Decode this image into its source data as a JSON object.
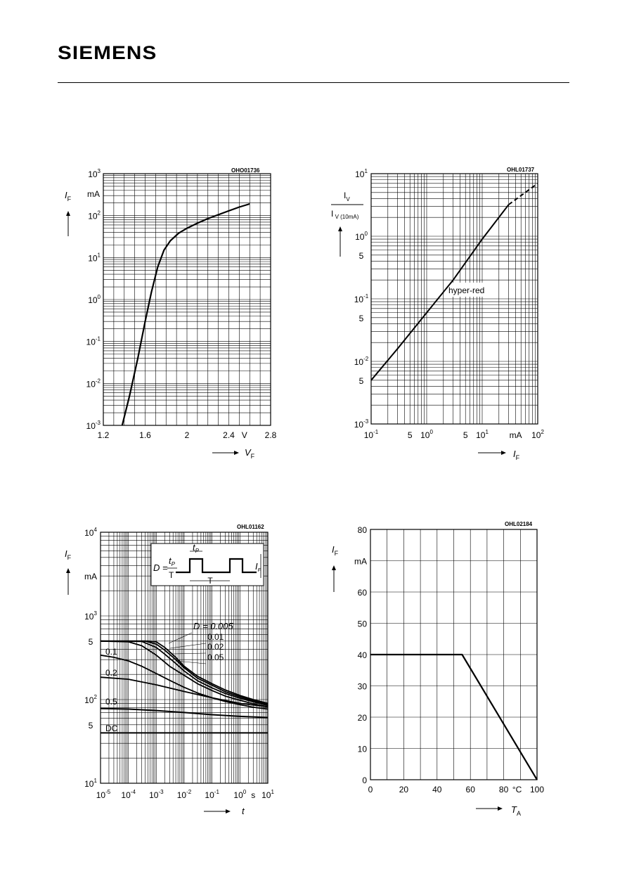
{
  "header": {
    "brand": "SIEMENS"
  },
  "chart_data": [
    {
      "type": "line",
      "code": "OHO01736",
      "xlabel": "V_F",
      "xunit": "V",
      "ylabel": "I_F",
      "yunit": "mA",
      "xlim": [
        1.2,
        2.8
      ],
      "ylim": [
        0.001,
        1000
      ],
      "yscale": "log",
      "xticks": [
        "1.2",
        "1.6",
        "2",
        "2.4",
        "V",
        "2.8"
      ],
      "yticks": [
        {
          "b": "10",
          "e": "3"
        },
        {
          "b": "10",
          "e": "2"
        },
        {
          "b": "10",
          "e": "1"
        },
        {
          "b": "10",
          "e": "0"
        },
        {
          "b": "10",
          "e": "-1"
        },
        {
          "b": "10",
          "e": "-2"
        },
        {
          "b": "10",
          "e": "-3"
        }
      ],
      "series": [
        {
          "x": [
            1.38,
            1.45,
            1.53,
            1.6,
            1.66,
            1.72,
            1.78,
            1.84,
            1.92,
            2.0,
            2.1,
            2.2,
            2.3,
            2.4,
            2.5,
            2.6
          ],
          "y": [
            0.001,
            0.005,
            0.04,
            0.3,
            1.5,
            6,
            15,
            25,
            38,
            50,
            66,
            85,
            105,
            130,
            160,
            190
          ]
        }
      ]
    },
    {
      "type": "line",
      "code": "OHL01737",
      "xlabel": "I_F",
      "xunit": "mA",
      "ylabel_num": "I_V",
      "ylabel_den": "I_V (10mA)",
      "xlim": [
        0.1,
        100
      ],
      "ylim": [
        0.001,
        10
      ],
      "xscale": "log",
      "yscale": "log",
      "xticks": [
        {
          "b": "10",
          "e": "-1"
        },
        {
          "b": "5",
          "e": ""
        },
        {
          "b": "10",
          "e": "0"
        },
        {
          "b": "5",
          "e": ""
        },
        {
          "b": "10",
          "e": "1"
        },
        {
          "b": "mA",
          "e": ""
        },
        {
          "b": "10",
          "e": "2"
        }
      ],
      "yticks": [
        {
          "b": "10",
          "e": "1"
        },
        {
          "b": "10",
          "e": "0"
        },
        {
          "b": "5",
          "e": ""
        },
        {
          "b": "10",
          "e": "-1"
        },
        {
          "b": "5",
          "e": ""
        },
        {
          "b": "10",
          "e": "-2"
        },
        {
          "b": "5",
          "e": ""
        },
        {
          "b": "10",
          "e": "-3"
        }
      ],
      "annotation": "hyper-red",
      "series": [
        {
          "name": "hyper-red",
          "x": [
            0.1,
            0.3,
            1,
            3,
            10,
            30
          ],
          "y": [
            0.005,
            0.016,
            0.06,
            0.2,
            0.9,
            3.2
          ]
        },
        {
          "style": "dashed",
          "x": [
            30,
            100
          ],
          "y": [
            3.2,
            7
          ]
        }
      ]
    },
    {
      "type": "line",
      "code": "OHL01162",
      "xlabel": "t",
      "xunit": "s",
      "ylabel": "I_F",
      "yunit": "mA",
      "xlim": [
        1e-05,
        10
      ],
      "ylim": [
        10,
        10000
      ],
      "xscale": "log",
      "yscale": "log",
      "xticks": [
        {
          "b": "10",
          "e": "-5"
        },
        {
          "b": "10",
          "e": "-4"
        },
        {
          "b": "10",
          "e": "-3"
        },
        {
          "b": "10",
          "e": "-2"
        },
        {
          "b": "10",
          "e": "-1"
        },
        {
          "b": "10",
          "e": "0"
        },
        {
          "b": "s",
          "e": ""
        },
        {
          "b": "10",
          "e": "1"
        }
      ],
      "yticks": [
        {
          "b": "10",
          "e": "4"
        },
        {
          "b": "mA",
          "e": ""
        },
        {
          "b": "10",
          "e": "3"
        },
        {
          "b": "5",
          "e": ""
        },
        {
          "b": "10",
          "e": "2"
        },
        {
          "b": "5",
          "e": ""
        },
        {
          "b": "10",
          "e": "1"
        }
      ],
      "duty_labels": [
        "D = 0.005",
        "0.01",
        "0.02",
        "0.05",
        "0.1",
        "0.2",
        "0.5",
        "DC"
      ],
      "inset": {
        "formula_lhs": "D =",
        "num": "t_P",
        "den": "T",
        "tp": "t_P",
        "T": "T",
        "I": "I_F"
      },
      "series": [
        {
          "name": "D = 0.005",
          "x": [
            1e-05,
            0.0005,
            0.001,
            0.002,
            0.005,
            0.01,
            0.03,
            0.1,
            0.3,
            1,
            3,
            10
          ],
          "y": [
            500,
            500,
            490,
            420,
            320,
            250,
            190,
            155,
            130,
            112,
            100,
            90
          ]
        },
        {
          "name": "0.01",
          "x": [
            1e-05,
            0.0004,
            0.001,
            0.002,
            0.005,
            0.01,
            0.03,
            0.1,
            0.3,
            1,
            3,
            10
          ],
          "y": [
            500,
            500,
            460,
            390,
            300,
            240,
            180,
            148,
            124,
            108,
            97,
            88
          ]
        },
        {
          "name": "0.02",
          "x": [
            1e-05,
            0.0003,
            0.001,
            0.002,
            0.005,
            0.01,
            0.03,
            0.1,
            0.3,
            1,
            3,
            10
          ],
          "y": [
            500,
            495,
            420,
            350,
            270,
            220,
            168,
            138,
            118,
            104,
            94,
            85
          ]
        },
        {
          "name": "0.05",
          "x": [
            1e-05,
            0.0001,
            0.0003,
            0.001,
            0.003,
            0.01,
            0.03,
            0.1,
            0.3,
            1,
            3,
            10
          ],
          "y": [
            500,
            490,
            440,
            340,
            250,
            195,
            155,
            128,
            110,
            98,
            89,
            82
          ]
        },
        {
          "name": "0.1",
          "x": [
            1e-05,
            3e-05,
            0.0001,
            0.0003,
            0.001,
            0.003,
            0.01,
            0.03,
            0.1,
            0.3,
            1,
            3,
            10
          ],
          "y": [
            340,
            320,
            290,
            250,
            205,
            170,
            140,
            120,
            105,
            95,
            87,
            81,
            77
          ]
        },
        {
          "name": "0.2",
          "x": [
            1e-05,
            0.0001,
            0.001,
            0.01,
            0.1,
            1,
            10
          ],
          "y": [
            185,
            175,
            150,
            125,
            105,
            90,
            82
          ]
        },
        {
          "name": "0.5",
          "x": [
            1e-05,
            0.0001,
            0.001,
            0.01,
            0.1,
            1,
            10
          ],
          "y": [
            78,
            77,
            74,
            70,
            66,
            63,
            61
          ]
        },
        {
          "name": "DC",
          "x": [
            1e-05,
            10
          ],
          "y": [
            40,
            40
          ]
        }
      ]
    },
    {
      "type": "line",
      "code": "OHL02184",
      "xlabel": "T_A",
      "xunit": "°C",
      "ylabel": "I_F",
      "yunit": "mA",
      "xlim": [
        0,
        100
      ],
      "ylim": [
        0,
        80
      ],
      "xticks": [
        "0",
        "20",
        "40",
        "60",
        "80",
        "°C",
        "100"
      ],
      "yticks": [
        "80",
        "mA",
        "60",
        "50",
        "40",
        "30",
        "20",
        "10",
        "0"
      ],
      "series": [
        {
          "x": [
            0,
            55,
            100
          ],
          "y": [
            40,
            40,
            0
          ]
        }
      ]
    }
  ]
}
